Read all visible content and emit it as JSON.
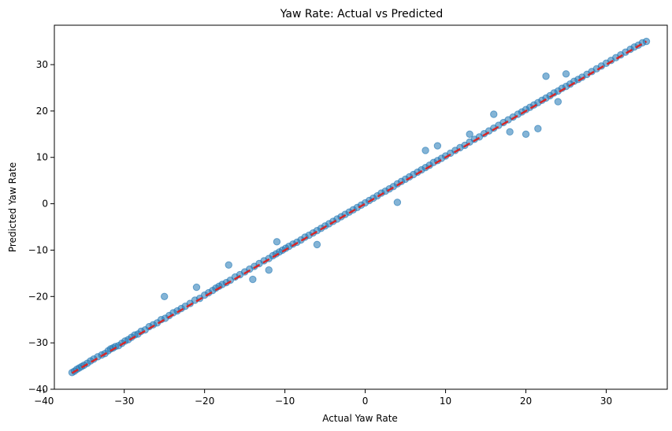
{
  "chart_data": {
    "type": "scatter",
    "title": "Yaw Rate: Actual vs Predicted",
    "xlabel": "Actual Yaw Rate",
    "ylabel": "Predicted Yaw Rate",
    "xlim": [
      -38.7,
      37.6
    ],
    "ylim": [
      -40.0,
      38.5
    ],
    "xticks": [
      -40,
      -30,
      -20,
      -10,
      0,
      10,
      20,
      30
    ],
    "yticks": [
      -40,
      -30,
      -20,
      -10,
      0,
      10,
      20,
      30
    ],
    "grid": false,
    "point_color": "#1f77b4",
    "point_alpha": 0.55,
    "reference_line": {
      "style": "dashed",
      "color": "#d62728",
      "x": [
        -36.5,
        35.0
      ],
      "y": [
        -36.5,
        35.0
      ]
    },
    "outliers": [
      {
        "x": -25.0,
        "y": -20.0
      },
      {
        "x": -21.0,
        "y": -18.0
      },
      {
        "x": -17.0,
        "y": -13.2
      },
      {
        "x": -12.0,
        "y": -14.3
      },
      {
        "x": -11.0,
        "y": -8.2
      },
      {
        "x": -14.0,
        "y": -16.3
      },
      {
        "x": -6.0,
        "y": -8.8
      },
      {
        "x": 4.0,
        "y": 0.3
      },
      {
        "x": 7.5,
        "y": 11.5
      },
      {
        "x": 9.0,
        "y": 12.5
      },
      {
        "x": 13.0,
        "y": 15.0
      },
      {
        "x": 16.0,
        "y": 19.3
      },
      {
        "x": 18.0,
        "y": 15.5
      },
      {
        "x": 20.0,
        "y": 15.0
      },
      {
        "x": 21.5,
        "y": 16.2
      },
      {
        "x": 22.5,
        "y": 27.5
      },
      {
        "x": 24.0,
        "y": 22.0
      },
      {
        "x": 25.0,
        "y": 28.0
      }
    ],
    "series": [
      {
        "x": [
          -36.5,
          -36.2,
          -35.9,
          -35.6,
          -35.3,
          -35.0,
          -34.6,
          -34.2,
          -33.8,
          -33.3,
          -32.8,
          -32.4,
          -32.0,
          -31.7,
          -31.4,
          -31.1,
          -30.7,
          -30.3,
          -29.9,
          -29.5,
          -29.1,
          -28.7,
          -28.3,
          -27.9,
          -27.4,
          -26.9,
          -26.4,
          -25.9,
          -25.4,
          -24.9,
          -24.4,
          -23.9,
          -23.4,
          -22.9,
          -22.4,
          -21.8,
          -21.2,
          -20.6,
          -20.0,
          -19.5,
          -19.0,
          -18.6,
          -18.2,
          -17.8,
          -17.3,
          -16.8,
          -16.2,
          -15.6,
          -15.0,
          -14.4,
          -13.8,
          -13.2,
          -12.6,
          -12.0,
          -11.5,
          -11.1,
          -10.7,
          -10.3,
          -9.9,
          -9.5,
          -9.0,
          -8.5,
          -8.0,
          -7.5,
          -7.0,
          -6.5,
          -6.0,
          -5.5,
          -5.0,
          -4.5,
          -4.0,
          -3.5,
          -3.0,
          -2.5,
          -2.0,
          -1.5,
          -1.0,
          -0.5,
          0.0,
          0.5,
          1.0,
          1.5,
          2.0,
          2.5,
          3.0,
          3.5,
          4.0,
          4.5,
          5.0,
          5.5,
          6.0,
          6.5,
          7.0,
          7.5,
          8.0,
          8.5,
          9.0,
          9.5,
          10.0,
          10.6,
          11.2,
          11.8,
          12.4,
          13.0,
          13.6,
          14.2,
          14.8,
          15.4,
          16.0,
          16.6,
          17.2,
          17.8,
          18.4,
          19.0,
          19.5,
          20.0,
          20.5,
          21.0,
          21.5,
          22.0,
          22.5,
          23.0,
          23.5,
          24.0,
          24.5,
          25.0,
          25.5,
          26.0,
          26.5,
          27.0,
          27.6,
          28.2,
          28.8,
          29.4,
          30.0,
          30.6,
          31.2,
          31.8,
          32.4,
          33.0,
          33.5,
          34.0,
          34.5,
          35.0
        ],
        "y": [
          -36.4,
          -36.1,
          -35.7,
          -35.4,
          -35.1,
          -34.8,
          -34.4,
          -33.9,
          -33.5,
          -33.0,
          -32.6,
          -32.3,
          -31.7,
          -31.3,
          -31.1,
          -30.8,
          -30.6,
          -30.1,
          -29.6,
          -29.3,
          -28.8,
          -28.3,
          -28.1,
          -27.5,
          -27.2,
          -26.5,
          -26.1,
          -25.7,
          -25.0,
          -24.7,
          -24.1,
          -23.5,
          -23.1,
          -22.6,
          -22.1,
          -21.5,
          -20.8,
          -20.4,
          -19.7,
          -19.2,
          -18.7,
          -18.2,
          -17.8,
          -17.4,
          -17.0,
          -16.5,
          -15.8,
          -15.3,
          -14.7,
          -14.1,
          -13.5,
          -12.9,
          -12.3,
          -11.8,
          -11.2,
          -10.8,
          -10.4,
          -10.0,
          -9.6,
          -9.2,
          -8.7,
          -8.3,
          -7.8,
          -7.2,
          -6.8,
          -6.3,
          -5.8,
          -5.3,
          -4.8,
          -4.3,
          -3.8,
          -3.3,
          -2.8,
          -2.3,
          -1.8,
          -1.3,
          -0.8,
          -0.3,
          0.2,
          0.7,
          1.2,
          1.7,
          2.3,
          2.7,
          3.2,
          3.7,
          4.3,
          4.8,
          5.3,
          5.8,
          6.3,
          6.8,
          7.3,
          7.8,
          8.3,
          8.9,
          9.3,
          9.8,
          10.3,
          10.9,
          11.5,
          12.1,
          12.6,
          13.3,
          13.9,
          14.4,
          15.1,
          15.7,
          16.3,
          16.9,
          17.5,
          18.1,
          18.7,
          19.3,
          19.8,
          20.3,
          20.8,
          21.3,
          21.8,
          22.3,
          22.8,
          23.3,
          23.9,
          24.3,
          24.9,
          25.3,
          25.8,
          26.4,
          26.8,
          27.3,
          27.9,
          28.5,
          29.1,
          29.7,
          30.3,
          30.9,
          31.5,
          32.1,
          32.7,
          33.3,
          33.8,
          34.2,
          34.7,
          35.0
        ]
      }
    ]
  }
}
